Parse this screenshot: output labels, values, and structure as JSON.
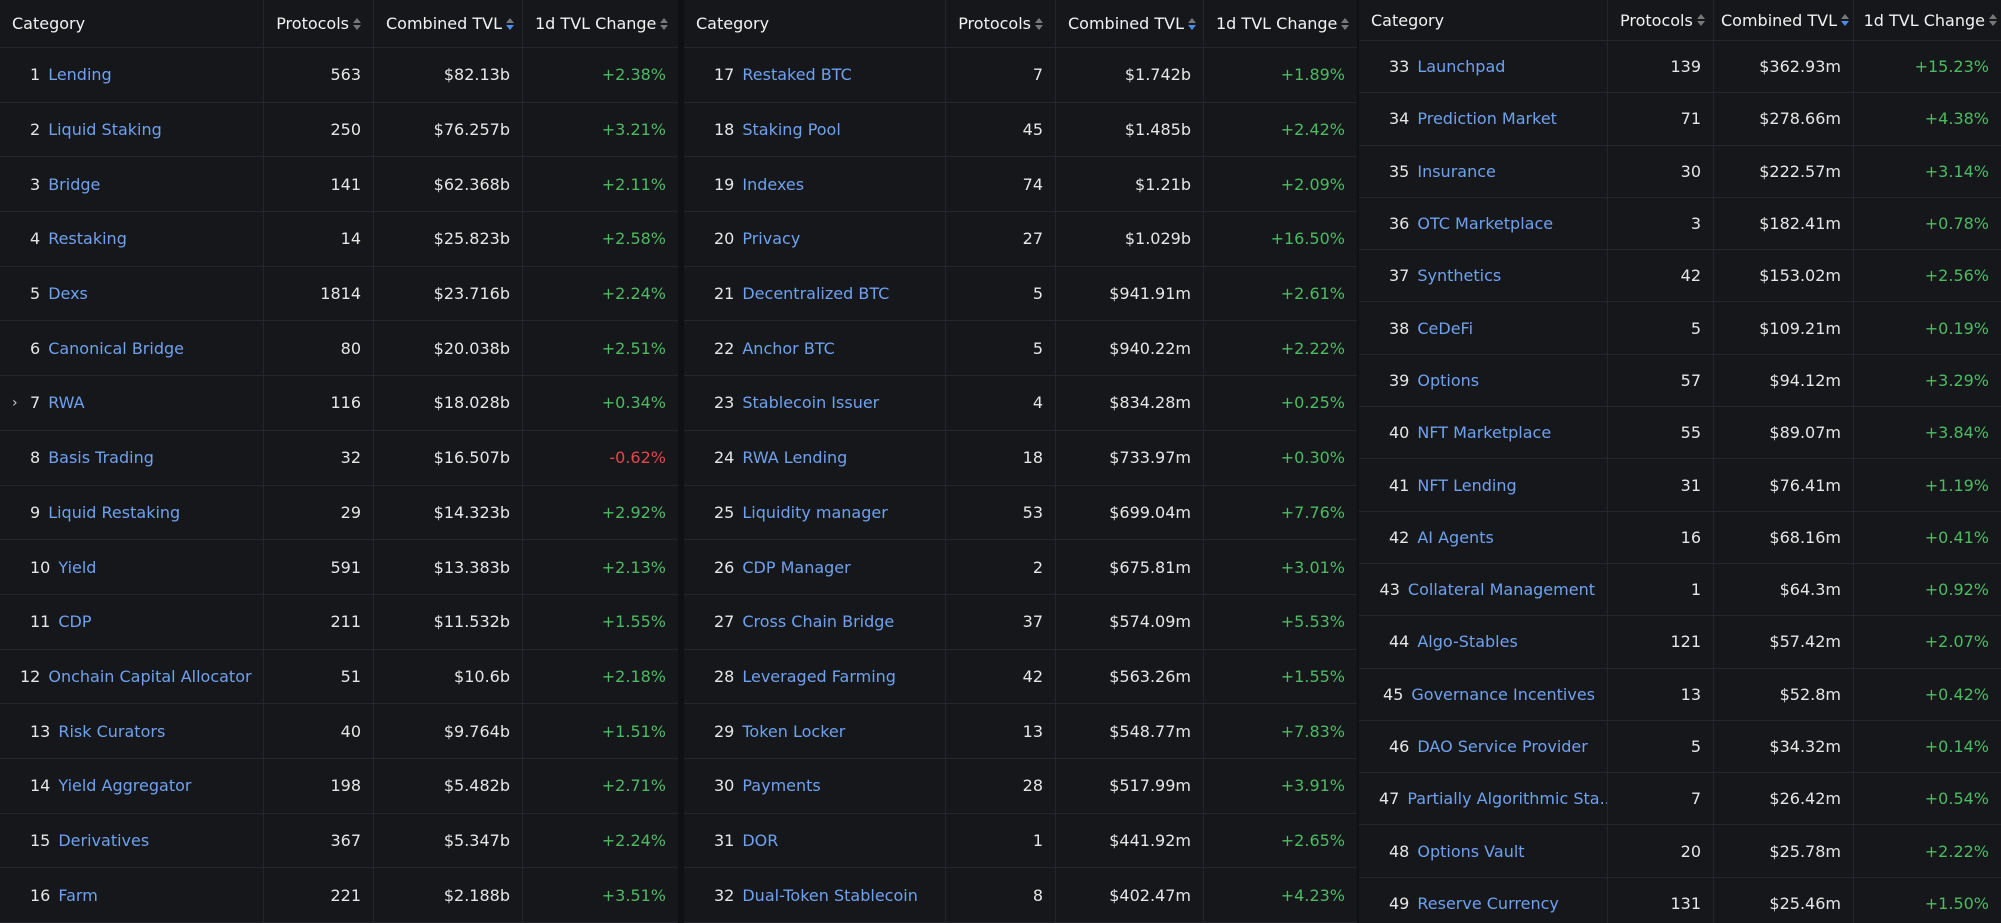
{
  "panels": [
    {
      "headers": [
        "Category",
        "Protocols",
        "Combined TVL",
        "1d TVL Change"
      ],
      "rows": [
        {
          "rank": 1,
          "name": "Lending",
          "protocols": 563,
          "tvl": "$82.13b",
          "change": "+2.38%"
        },
        {
          "rank": 2,
          "name": "Liquid Staking",
          "protocols": 250,
          "tvl": "$76.257b",
          "change": "+3.21%"
        },
        {
          "rank": 3,
          "name": "Bridge",
          "protocols": 141,
          "tvl": "$62.368b",
          "change": "+2.11%"
        },
        {
          "rank": 4,
          "name": "Restaking",
          "protocols": 14,
          "tvl": "$25.823b",
          "change": "+2.58%"
        },
        {
          "rank": 5,
          "name": "Dexs",
          "protocols": 1814,
          "tvl": "$23.716b",
          "change": "+2.24%"
        },
        {
          "rank": 6,
          "name": "Canonical Bridge",
          "protocols": 80,
          "tvl": "$20.038b",
          "change": "+2.51%"
        },
        {
          "rank": 7,
          "name": "RWA",
          "protocols": 116,
          "tvl": "$18.028b",
          "change": "+0.34%",
          "expandable": true
        },
        {
          "rank": 8,
          "name": "Basis Trading",
          "protocols": 32,
          "tvl": "$16.507b",
          "change": "-0.62%"
        },
        {
          "rank": 9,
          "name": "Liquid Restaking",
          "protocols": 29,
          "tvl": "$14.323b",
          "change": "+2.92%"
        },
        {
          "rank": 10,
          "name": "Yield",
          "protocols": 591,
          "tvl": "$13.383b",
          "change": "+2.13%"
        },
        {
          "rank": 11,
          "name": "CDP",
          "protocols": 211,
          "tvl": "$11.532b",
          "change": "+1.55%"
        },
        {
          "rank": 12,
          "name": "Onchain Capital Allocator",
          "protocols": 51,
          "tvl": "$10.6b",
          "change": "+2.18%"
        },
        {
          "rank": 13,
          "name": "Risk Curators",
          "protocols": 40,
          "tvl": "$9.764b",
          "change": "+1.51%"
        },
        {
          "rank": 14,
          "name": "Yield Aggregator",
          "protocols": 198,
          "tvl": "$5.482b",
          "change": "+2.71%"
        },
        {
          "rank": 15,
          "name": "Derivatives",
          "protocols": 367,
          "tvl": "$5.347b",
          "change": "+2.24%"
        },
        {
          "rank": 16,
          "name": "Farm",
          "protocols": 221,
          "tvl": "$2.188b",
          "change": "+3.51%"
        }
      ]
    },
    {
      "headers": [
        "Category",
        "Protocols",
        "Combined TVL",
        "1d TVL Change"
      ],
      "rows": [
        {
          "rank": 17,
          "name": "Restaked BTC",
          "protocols": 7,
          "tvl": "$1.742b",
          "change": "+1.89%"
        },
        {
          "rank": 18,
          "name": "Staking Pool",
          "protocols": 45,
          "tvl": "$1.485b",
          "change": "+2.42%"
        },
        {
          "rank": 19,
          "name": "Indexes",
          "protocols": 74,
          "tvl": "$1.21b",
          "change": "+2.09%"
        },
        {
          "rank": 20,
          "name": "Privacy",
          "protocols": 27,
          "tvl": "$1.029b",
          "change": "+16.50%"
        },
        {
          "rank": 21,
          "name": "Decentralized BTC",
          "protocols": 5,
          "tvl": "$941.91m",
          "change": "+2.61%"
        },
        {
          "rank": 22,
          "name": "Anchor BTC",
          "protocols": 5,
          "tvl": "$940.22m",
          "change": "+2.22%"
        },
        {
          "rank": 23,
          "name": "Stablecoin Issuer",
          "protocols": 4,
          "tvl": "$834.28m",
          "change": "+0.25%"
        },
        {
          "rank": 24,
          "name": "RWA Lending",
          "protocols": 18,
          "tvl": "$733.97m",
          "change": "+0.30%"
        },
        {
          "rank": 25,
          "name": "Liquidity manager",
          "protocols": 53,
          "tvl": "$699.04m",
          "change": "+7.76%"
        },
        {
          "rank": 26,
          "name": "CDP Manager",
          "protocols": 2,
          "tvl": "$675.81m",
          "change": "+3.01%"
        },
        {
          "rank": 27,
          "name": "Cross Chain Bridge",
          "protocols": 37,
          "tvl": "$574.09m",
          "change": "+5.53%"
        },
        {
          "rank": 28,
          "name": "Leveraged Farming",
          "protocols": 42,
          "tvl": "$563.26m",
          "change": "+1.55%"
        },
        {
          "rank": 29,
          "name": "Token Locker",
          "protocols": 13,
          "tvl": "$548.77m",
          "change": "+7.83%"
        },
        {
          "rank": 30,
          "name": "Payments",
          "protocols": 28,
          "tvl": "$517.99m",
          "change": "+3.91%"
        },
        {
          "rank": 31,
          "name": "DOR",
          "protocols": 1,
          "tvl": "$441.92m",
          "change": "+2.65%"
        },
        {
          "rank": 32,
          "name": "Dual-Token Stablecoin",
          "protocols": 8,
          "tvl": "$402.47m",
          "change": "+4.23%"
        }
      ]
    },
    {
      "headers": [
        "Category",
        "Protocols",
        "Combined TVL",
        "1d TVL Change"
      ],
      "rows": [
        {
          "rank": 33,
          "name": "Launchpad",
          "protocols": 139,
          "tvl": "$362.93m",
          "change": "+15.23%"
        },
        {
          "rank": 34,
          "name": "Prediction Market",
          "protocols": 71,
          "tvl": "$278.66m",
          "change": "+4.38%"
        },
        {
          "rank": 35,
          "name": "Insurance",
          "protocols": 30,
          "tvl": "$222.57m",
          "change": "+3.14%"
        },
        {
          "rank": 36,
          "name": "OTC Marketplace",
          "protocols": 3,
          "tvl": "$182.41m",
          "change": "+0.78%"
        },
        {
          "rank": 37,
          "name": "Synthetics",
          "protocols": 42,
          "tvl": "$153.02m",
          "change": "+2.56%"
        },
        {
          "rank": 38,
          "name": "CeDeFi",
          "protocols": 5,
          "tvl": "$109.21m",
          "change": "+0.19%"
        },
        {
          "rank": 39,
          "name": "Options",
          "protocols": 57,
          "tvl": "$94.12m",
          "change": "+3.29%"
        },
        {
          "rank": 40,
          "name": "NFT Marketplace",
          "protocols": 55,
          "tvl": "$89.07m",
          "change": "+3.84%"
        },
        {
          "rank": 41,
          "name": "NFT Lending",
          "protocols": 31,
          "tvl": "$76.41m",
          "change": "+1.19%"
        },
        {
          "rank": 42,
          "name": "AI Agents",
          "protocols": 16,
          "tvl": "$68.16m",
          "change": "+0.41%"
        },
        {
          "rank": 43,
          "name": "Collateral Management",
          "protocols": 1,
          "tvl": "$64.3m",
          "change": "+0.92%"
        },
        {
          "rank": 44,
          "name": "Algo-Stables",
          "protocols": 121,
          "tvl": "$57.42m",
          "change": "+2.07%"
        },
        {
          "rank": 45,
          "name": "Governance Incentives",
          "protocols": 13,
          "tvl": "$52.8m",
          "change": "+0.42%"
        },
        {
          "rank": 46,
          "name": "DAO Service Provider",
          "protocols": 5,
          "tvl": "$34.32m",
          "change": "+0.14%"
        },
        {
          "rank": 47,
          "name": "Partially Algorithmic Sta...",
          "protocols": 7,
          "tvl": "$26.42m",
          "change": "+0.54%"
        },
        {
          "rank": 48,
          "name": "Options Vault",
          "protocols": 20,
          "tvl": "$25.78m",
          "change": "+2.22%"
        },
        {
          "rank": 49,
          "name": "Reserve Currency",
          "protocols": 131,
          "tvl": "$25.46m",
          "change": "+1.50%"
        }
      ]
    }
  ]
}
